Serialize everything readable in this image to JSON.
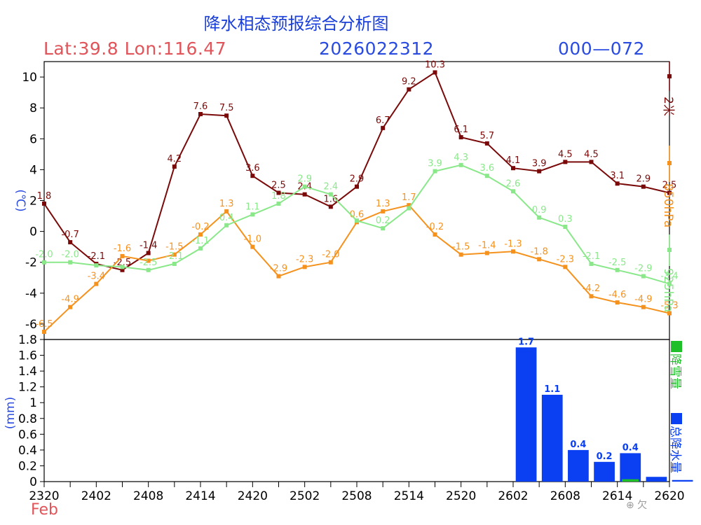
{
  "header": {
    "title": "降水相态预报综合分析图",
    "location": "Lat:39.8  Lon:116.47",
    "run_time": "2026022312",
    "forecast_range": "000—072"
  },
  "footer": {
    "month": "Feb",
    "watermark": "⊕ 欠"
  },
  "colors": {
    "t2m": "#7a0a0a",
    "t850": "#f5921e",
    "t925": "#8ae88a",
    "snow": "#1fbf2a",
    "precip": "#0a3ff2",
    "axis": "#000000",
    "axis_unit": "#2a4be0"
  },
  "chart_data": [
    {
      "type": "line",
      "name": "temperature",
      "ylabel": "(℃)",
      "ylim": [
        -7,
        11
      ],
      "yticks": [
        -6,
        -4,
        -2,
        0,
        2,
        4,
        6,
        8,
        10
      ],
      "x_index": [
        0,
        1,
        2,
        3,
        4,
        5,
        6,
        7,
        8,
        9,
        10,
        11,
        12,
        13,
        14,
        15,
        16,
        17,
        18,
        19,
        20,
        21,
        22,
        23,
        24
      ],
      "series": [
        {
          "name": "2米",
          "key": "t2m",
          "values": [
            1.8,
            -0.7,
            -2.1,
            -2.5,
            -1.4,
            4.2,
            7.6,
            7.5,
            3.6,
            2.5,
            2.4,
            1.6,
            2.9,
            6.7,
            9.2,
            10.3,
            6.1,
            5.7,
            4.1,
            3.9,
            4.5,
            4.5,
            3.1,
            2.9,
            2.5
          ],
          "labels": [
            "1.8",
            "-0.7",
            "-2.1",
            "-2.5",
            "-1.4",
            "4.2",
            "7.6",
            "7.5",
            "3.6",
            "2.5",
            "2.4",
            "1.6",
            "2.9",
            "6.7",
            "9.2",
            "10.3",
            "6.1",
            "5.7",
            "4.1",
            "3.9",
            "4.5",
            "4.5",
            "3.1",
            "2.9",
            "2.5"
          ]
        },
        {
          "name": "850hPa",
          "key": "t850",
          "values": [
            -6.5,
            -4.9,
            -3.4,
            -1.6,
            -1.9,
            -1.5,
            -0.2,
            1.3,
            -1.0,
            -2.9,
            -2.3,
            -2.0,
            0.6,
            1.3,
            1.7,
            -0.2,
            -1.5,
            -1.4,
            -1.3,
            -1.8,
            -2.3,
            -4.2,
            -4.6,
            -4.9,
            -5.3
          ],
          "labels": [
            "-6.5",
            "-4.9",
            "-3.4",
            "-1.6",
            "",
            "-1.5",
            "-0.2",
            "1.3",
            "-1.0",
            "-2.9",
            "-2.3",
            "-2.0",
            "0.6",
            "1.3",
            "1.7",
            "-0.2",
            "-1.5",
            "-1.4",
            "-1.3",
            "-1.8",
            "-2.3",
            "-4.2",
            "-4.6",
            "-4.9",
            "-5.3"
          ]
        },
        {
          "name": "925hPa",
          "key": "t925",
          "values": [
            -2.0,
            -2.0,
            -2.2,
            -2.3,
            -2.5,
            -2.1,
            -1.1,
            0.4,
            1.1,
            1.8,
            2.9,
            2.4,
            0.7,
            0.2,
            1.5,
            3.9,
            4.3,
            3.6,
            2.6,
            0.9,
            0.3,
            -2.1,
            -2.5,
            -2.9,
            -3.4
          ],
          "labels": [
            "-2.0",
            "-2.0",
            "",
            "",
            "-2.5",
            "-2.1",
            "-1.1",
            "0.4",
            "1.1",
            "1.8",
            "2.9",
            "2.4",
            "",
            "0.2",
            "",
            "3.9",
            "4.3",
            "3.6",
            "2.6",
            "0.9",
            "0.3",
            "-2.1",
            "-2.5",
            "-2.9",
            "-3.4"
          ]
        }
      ]
    },
    {
      "type": "bar",
      "name": "precipitation",
      "ylabel": "(mm)",
      "ylim": [
        0,
        1.8
      ],
      "yticks": [
        "0",
        "0.2",
        "0.4",
        "0.6",
        "0.8",
        "1",
        "1.2",
        "1.4",
        "1.6",
        "1.8"
      ],
      "ytick_values": [
        0,
        0.2,
        0.4,
        0.6,
        0.8,
        1.0,
        1.2,
        1.4,
        1.6,
        1.8
      ],
      "bar_index": [
        18,
        19,
        20,
        21,
        22,
        23,
        24
      ],
      "series": [
        {
          "name": "总降水量",
          "key": "precip",
          "values": [
            1.7,
            1.1,
            0.4,
            0.25,
            0.36,
            0.06,
            0.02
          ],
          "labels": [
            "1.7",
            "1.1",
            "0.4",
            "0.2",
            "0.4",
            "",
            ""
          ]
        },
        {
          "name": "降雪量",
          "key": "snow",
          "values": [
            0,
            0,
            0,
            0,
            0.03,
            0,
            0
          ],
          "labels": [
            "",
            "",
            "",
            "",
            "",
            "",
            ""
          ]
        }
      ]
    }
  ],
  "x_axis": {
    "tick_labels": [
      "2320",
      "2402",
      "2408",
      "2414",
      "2420",
      "2502",
      "2508",
      "2514",
      "2520",
      "2602",
      "2608",
      "2614",
      "2620"
    ],
    "label_index": [
      0,
      2,
      4,
      6,
      8,
      10,
      12,
      14,
      16,
      18,
      20,
      22,
      24
    ]
  },
  "legend": {
    "t2m": "2米",
    "t850": "850hPa",
    "t925": "925hPa",
    "snow": "降雪量",
    "precip": "总降水量"
  }
}
